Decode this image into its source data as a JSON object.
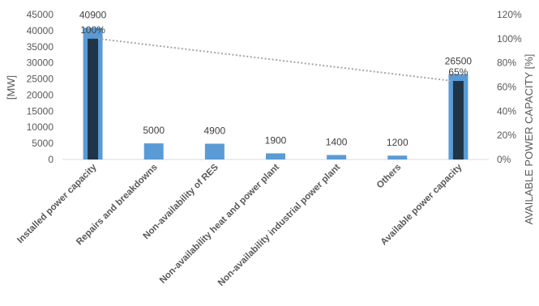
{
  "chart_data": {
    "type": "bar",
    "categories": [
      "Installed power capacity",
      "Repairs and breakdowns",
      "Non-availability of RES",
      "Non-availability heat and power plant",
      "Non-availability industrial power plant",
      "Others",
      "Available power capacity"
    ],
    "series": [
      {
        "values": [
          40900,
          5000,
          4900,
          1900,
          1400,
          1200,
          26500
        ],
        "color": "#5b9bd5"
      },
      {
        "axis": "right",
        "values": [
          100,
          null,
          null,
          null,
          null,
          null,
          65
        ],
        "color": "#1f3547"
      }
    ],
    "value_labels": [
      "40900",
      "5000",
      "4900",
      "1900",
      "1400",
      "1200",
      "26500"
    ],
    "percent_labels": [
      "100%",
      "",
      "",
      "",
      "",
      "",
      "65%"
    ],
    "trend_line": {
      "from": 0,
      "to": 6,
      "style": "dotted",
      "color": "#a6a6a6"
    },
    "ylabel": "[MW]",
    "y2label": "AVAILABLE  POWER CAPACITY [%]",
    "ylim": [
      0,
      45000
    ],
    "yticks": [
      "0",
      "5000",
      "10000",
      "15000",
      "20000",
      "25000",
      "30000",
      "35000",
      "40000",
      "45000"
    ],
    "y2lim": [
      0,
      120
    ],
    "y2ticks": [
      "0%",
      "20%",
      "40%",
      "60%",
      "80%",
      "100%",
      "120%"
    ],
    "grid": false,
    "legend": "none"
  }
}
